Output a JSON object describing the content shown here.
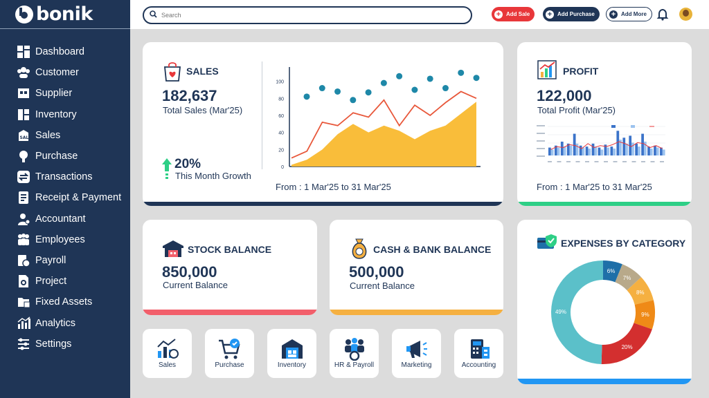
{
  "brand": "bonik",
  "colors": {
    "navy": "#1f3556",
    "red": "#e8373a",
    "green": "#2ecf86",
    "orange": "#f5b041",
    "blue": "#2196f3",
    "teal": "#1e88a8",
    "pink": "#f25f6b"
  },
  "search": {
    "placeholder": "Search"
  },
  "header": {
    "add_sale": "Add Sale",
    "add_purchase": "Add Purchase",
    "add_more": "Add More",
    "icons": [
      "bell-icon",
      "avatar"
    ]
  },
  "sidebar": {
    "items": [
      {
        "label": "Dashboard",
        "icon": "dashboard-icon"
      },
      {
        "label": "Customer",
        "icon": "customer-icon"
      },
      {
        "label": "Supplier",
        "icon": "supplier-icon"
      },
      {
        "label": "Inventory",
        "icon": "inventory-icon"
      },
      {
        "label": "Sales",
        "icon": "sales-icon"
      },
      {
        "label": "Purchase",
        "icon": "purchase-icon"
      },
      {
        "label": "Transactions",
        "icon": "transactions-icon"
      },
      {
        "label": "Receipt & Payment",
        "icon": "receipt-icon"
      },
      {
        "label": "Accountant",
        "icon": "accountant-icon"
      },
      {
        "label": "Employees",
        "icon": "employees-icon"
      },
      {
        "label": "Payroll",
        "icon": "payroll-icon"
      },
      {
        "label": "Project",
        "icon": "project-icon"
      },
      {
        "label": "Fixed Assets",
        "icon": "fixed-assets-icon"
      },
      {
        "label": "Analytics",
        "icon": "analytics-icon"
      },
      {
        "label": "Settings",
        "icon": "settings-icon"
      }
    ]
  },
  "sales": {
    "title": "SALES",
    "value": "182,637",
    "caption": "Total Sales (Mar'25)",
    "growth": "20%",
    "growth_caption": "This Month Growth",
    "range": "From : 1 Mar'25 to 31 Mar'25",
    "chart_data": {
      "type": "line",
      "ylim": [
        0,
        120
      ],
      "yticks": [
        0,
        20,
        40,
        60,
        80,
        100
      ],
      "area": [
        2,
        8,
        20,
        38,
        50,
        40,
        48,
        42,
        32,
        42,
        48,
        62,
        76
      ],
      "line": [
        10,
        18,
        52,
        48,
        63,
        58,
        78,
        48,
        72,
        60,
        75,
        88,
        80
      ],
      "dots": [
        82,
        92,
        88,
        78,
        87,
        98,
        106,
        90,
        103,
        92,
        110,
        104
      ]
    }
  },
  "profit": {
    "title": "PROFIT",
    "value": "122,000",
    "caption": "Total Profit (Mar'25)",
    "range": "From : 1 Mar'25 to 31 Mar'25",
    "chart_data": {
      "type": "bar",
      "series": [
        {
          "values": [
            8,
            10,
            14,
            12,
            22,
            10,
            9,
            12,
            8,
            11,
            9,
            25,
            18,
            20,
            12,
            22,
            9,
            10,
            8
          ]
        },
        {
          "values": [
            6,
            8,
            9,
            10,
            12,
            8,
            7,
            9,
            6,
            8,
            7,
            16,
            12,
            13,
            9,
            14,
            7,
            8,
            6
          ]
        }
      ],
      "line": [
        6,
        9,
        8,
        11,
        10,
        7,
        12,
        8,
        10,
        9,
        11,
        14,
        12,
        9,
        13,
        12,
        8,
        10,
        7
      ]
    }
  },
  "stock": {
    "title": "STOCK BALANCE",
    "value": "850,000",
    "caption": "Current Balance"
  },
  "cash": {
    "title": "CASH & BANK BALANCE",
    "value": "500,000",
    "caption": "Current Balance"
  },
  "expenses": {
    "title": "EXPENSES BY CATEGORY",
    "chart_data": {
      "type": "pie",
      "slices": [
        {
          "label": "6%",
          "value": 6,
          "color": "#1f6fa8"
        },
        {
          "label": "7%",
          "value": 7,
          "color": "#b8a98a"
        },
        {
          "label": "8%",
          "value": 8,
          "color": "#f5b041"
        },
        {
          "label": "9%",
          "value": 9,
          "color": "#ef8a17"
        },
        {
          "label": "20%",
          "value": 20,
          "color": "#d32f2f"
        },
        {
          "label": "49%",
          "value": 49,
          "color": "#5bc0c9"
        }
      ]
    }
  },
  "tiles": [
    {
      "label": "Sales",
      "icon": "sales-chart-icon"
    },
    {
      "label": "Purchase",
      "icon": "cart-icon"
    },
    {
      "label": "Inventory",
      "icon": "warehouse-icon"
    },
    {
      "label": "HR & Payroll",
      "icon": "hr-icon"
    },
    {
      "label": "Marketing",
      "icon": "megaphone-icon"
    },
    {
      "label": "Accounting",
      "icon": "accounting-icon"
    }
  ]
}
